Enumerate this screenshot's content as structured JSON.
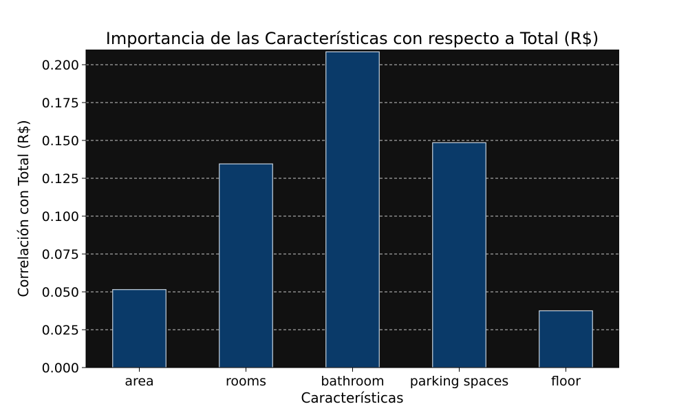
{
  "chart_data": {
    "type": "bar",
    "title": "Importancia de las Características con respecto a Total (R$)",
    "xlabel": "Características",
    "ylabel": "Correlación con Total (R$)",
    "categories": [
      "area",
      "rooms",
      "bathroom",
      "parking spaces",
      "floor"
    ],
    "values": [
      0.0515,
      0.1345,
      0.2085,
      0.1485,
      0.0375
    ],
    "ylim": [
      0,
      0.21
    ],
    "yticks": [
      "0.000",
      "0.025",
      "0.050",
      "0.075",
      "0.100",
      "0.125",
      "0.150",
      "0.175",
      "0.200"
    ],
    "grid": "y-dashed",
    "colors": {
      "plot_background": "#111111",
      "bar_fill": "#0a3a69",
      "bar_edge": "#c7d3e0",
      "grid": "#dddddd"
    }
  }
}
